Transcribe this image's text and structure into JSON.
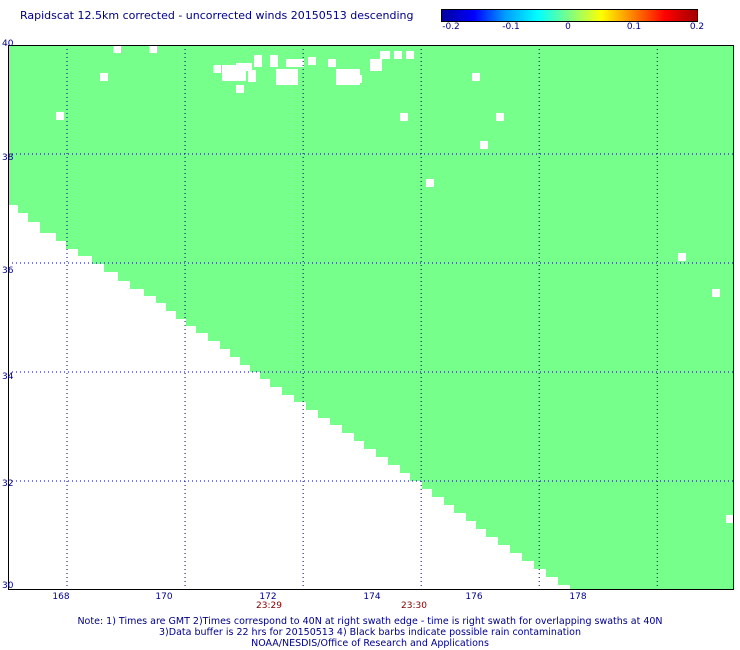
{
  "title": "Rapidscat 12.5km corrected - uncorrected winds 20150513 descending",
  "colorbar": {
    "labels": [
      "-0.2",
      "-0.1",
      "0",
      "0.1",
      "0.2"
    ],
    "min": -0.2,
    "max": 0.2,
    "colors": [
      "#0000a0",
      "#0000ff",
      "#00a0ff",
      "#00ffff",
      "#80ff80",
      "#ffff00",
      "#ff8000",
      "#ff0000",
      "#a00000"
    ]
  },
  "map": {
    "lon_range": [
      167,
      179.3
    ],
    "lat_range": [
      30,
      40
    ],
    "fill_color": "#77ff8c",
    "y_ticks": [
      "40",
      "38",
      "36",
      "34",
      "32",
      "30"
    ],
    "x_ticks": [
      "168",
      "170",
      "172",
      "174",
      "176",
      "178"
    ],
    "time_labels": [
      {
        "text": "23:29",
        "lon": 170
      },
      {
        "text": "23:30",
        "lon": 172.8
      }
    ]
  },
  "notes": [
    "Note: 1) Times are GMT 2)Times correspond to 40N at right swath edge - time is right swath for overlapping swaths at 40N",
    "3)Data buffer is 22 hrs for 20150513 4) Black barbs indicate possible rain contamination",
    "NOAA/NESDIS/Office of Research and Applications"
  ]
}
